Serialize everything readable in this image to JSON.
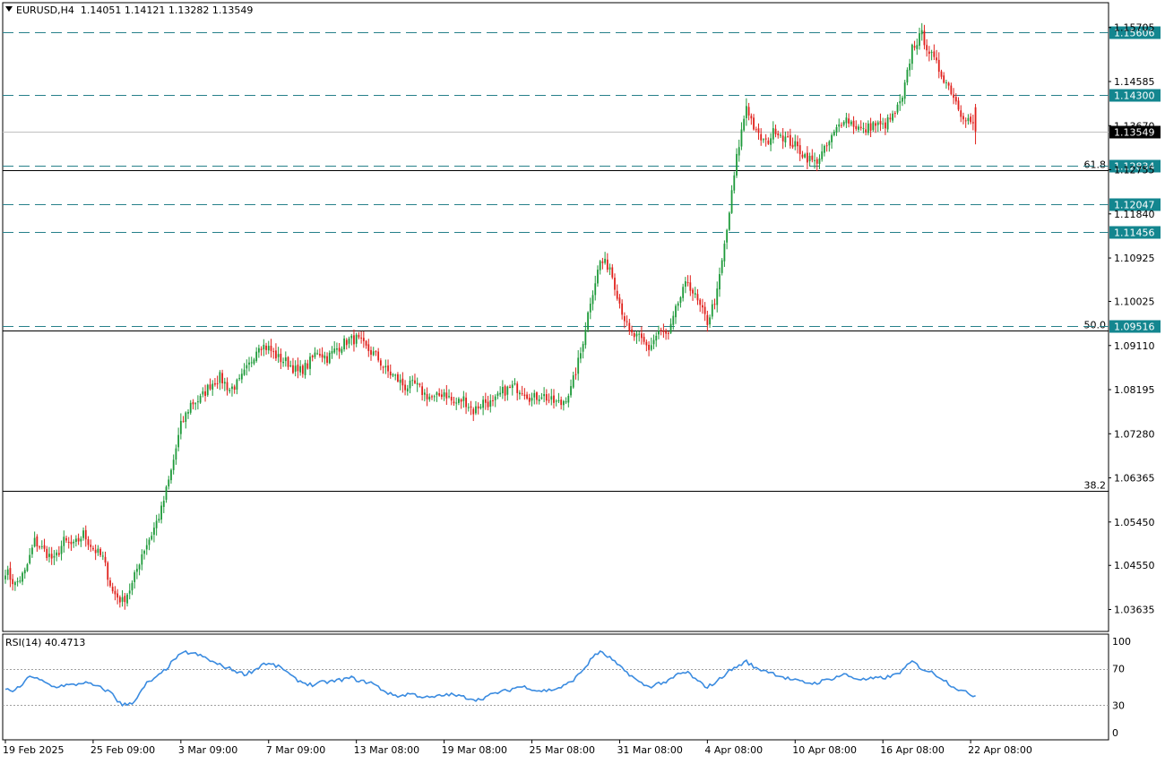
{
  "header": {
    "symbol": "EURUSD,H4",
    "open": "1.14051",
    "high": "1.14121",
    "low": "1.13282",
    "close": "1.13549"
  },
  "colors": {
    "bull": "#1e9a3a",
    "bear": "#e0201b",
    "level_line": "#26808a",
    "level_tag_bg": "#13868f",
    "current_tag_bg": "#000000",
    "rsi_line": "#3a8be0",
    "fib_line": "#000000"
  },
  "chart_data": [
    {
      "type": "candlestick",
      "title": "",
      "ylim": [
        1.0318,
        1.1622
      ],
      "y_ticks": [
        "1.15705",
        "1.14585",
        "1.13670",
        "1.12755",
        "1.11840",
        "1.10925",
        "1.10025",
        "1.09110",
        "1.08195",
        "1.07280",
        "1.06365",
        "1.05450",
        "1.04550",
        "1.03635"
      ],
      "x_ticks": [
        "19 Feb 2025",
        "25 Feb 09:00",
        "3 Mar 09:00",
        "7 Mar 09:00",
        "13 Mar 08:00",
        "19 Mar 08:00",
        "25 Mar 08:00",
        "31 Mar 08:00",
        "4 Apr 08:00",
        "10 Apr 08:00",
        "16 Apr 08:00",
        "22 Apr 08:00"
      ],
      "horizontal_levels": [
        {
          "label": "1.15606",
          "value": 1.15606,
          "style": "dashed"
        },
        {
          "label": "1.14300",
          "value": 1.143,
          "style": "dashed"
        },
        {
          "label": "1.12834",
          "value": 1.12834,
          "style": "dashed"
        },
        {
          "label": "1.12047",
          "value": 1.12047,
          "style": "dashed"
        },
        {
          "label": "1.11456",
          "value": 1.11456,
          "style": "dashed"
        },
        {
          "label": "1.09516",
          "value": 1.09516,
          "style": "dashed"
        }
      ],
      "current_price": {
        "label": "1.13549",
        "value": 1.13549
      },
      "fib_levels": [
        {
          "label": "61.8",
          "value": 1.1275
        },
        {
          "label": "50.0",
          "value": 1.0943
        },
        {
          "label": "38.2",
          "value": 1.061
        }
      ],
      "close_anchors": [
        [
          0,
          1.0445
        ],
        [
          4,
          1.0415
        ],
        [
          8,
          1.044
        ],
        [
          12,
          1.0505
        ],
        [
          16,
          1.0485
        ],
        [
          20,
          1.0465
        ],
        [
          24,
          1.0505
        ],
        [
          28,
          1.0495
        ],
        [
          32,
          1.052
        ],
        [
          36,
          1.049
        ],
        [
          40,
          1.047
        ],
        [
          44,
          1.04
        ],
        [
          48,
          1.038
        ],
        [
          52,
          1.0415
        ],
        [
          56,
          1.048
        ],
        [
          60,
          1.052
        ],
        [
          64,
          1.057
        ],
        [
          68,
          1.065
        ],
        [
          72,
          1.0745
        ],
        [
          76,
          1.079
        ],
        [
          80,
          1.08
        ],
        [
          84,
          1.083
        ],
        [
          88,
          1.0845
        ],
        [
          92,
          1.082
        ],
        [
          96,
          1.0835
        ],
        [
          100,
          1.087
        ],
        [
          104,
          1.0915
        ],
        [
          108,
          1.0905
        ],
        [
          112,
          1.0885
        ],
        [
          116,
          1.0875
        ],
        [
          120,
          1.0855
        ],
        [
          124,
          1.087
        ],
        [
          128,
          1.09
        ],
        [
          132,
          1.0885
        ],
        [
          136,
          1.0905
        ],
        [
          140,
          1.092
        ],
        [
          144,
          1.0925
        ],
        [
          148,
          1.0905
        ],
        [
          152,
          1.089
        ],
        [
          156,
          1.086
        ],
        [
          160,
          1.0845
        ],
        [
          164,
          1.0825
        ],
        [
          168,
          1.083
        ],
        [
          172,
          1.081
        ],
        [
          176,
          1.08
        ],
        [
          180,
          1.0815
        ],
        [
          184,
          1.079
        ],
        [
          188,
          1.08
        ],
        [
          192,
          1.0775
        ],
        [
          196,
          1.0795
        ],
        [
          200,
          1.079
        ],
        [
          204,
          1.0815
        ],
        [
          208,
          1.0825
        ],
        [
          212,
          1.082
        ],
        [
          216,
          1.08
        ],
        [
          220,
          1.081
        ],
        [
          224,
          1.0795
        ],
        [
          228,
          1.079
        ],
        [
          232,
          1.082
        ],
        [
          236,
          1.0895
        ],
        [
          240,
          1.1005
        ],
        [
          244,
          1.1085
        ],
        [
          248,
          1.1075
        ],
        [
          252,
          1.1
        ],
        [
          256,
          1.0935
        ],
        [
          260,
          1.0925
        ],
        [
          264,
          1.0905
        ],
        [
          268,
          1.094
        ],
        [
          272,
          1.093
        ],
        [
          276,
          1.1
        ],
        [
          280,
          1.1045
        ],
        [
          284,
          1.1
        ],
        [
          288,
          1.096
        ],
        [
          292,
          1.102
        ],
        [
          296,
          1.115
        ],
        [
          300,
          1.13
        ],
        [
          304,
          1.141
        ],
        [
          308,
          1.135
        ],
        [
          312,
          1.133
        ],
        [
          316,
          1.136
        ],
        [
          320,
          1.134
        ],
        [
          324,
          1.1325
        ],
        [
          328,
          1.1305
        ],
        [
          332,
          1.129
        ],
        [
          336,
          1.1315
        ],
        [
          340,
          1.135
        ],
        [
          344,
          1.1385
        ],
        [
          348,
          1.137
        ],
        [
          352,
          1.1355
        ],
        [
          356,
          1.137
        ],
        [
          360,
          1.1365
        ],
        [
          364,
          1.1385
        ],
        [
          368,
          1.142
        ],
        [
          372,
          1.153
        ],
        [
          376,
          1.1555
        ],
        [
          380,
          1.151
        ],
        [
          384,
          1.1475
        ],
        [
          388,
          1.144
        ],
        [
          392,
          1.1395
        ],
        [
          396,
          1.1375
        ],
        [
          398,
          1.1355
        ]
      ],
      "rsi_ylim": [
        0,
        100
      ],
      "rsi_ticks": [
        "100",
        "70",
        "30",
        "0"
      ],
      "rsi_levels": [
        70,
        30
      ],
      "rsi_header": "RSI(14) 40.4713",
      "rsi_anchors": [
        [
          0,
          47
        ],
        [
          4,
          46
        ],
        [
          8,
          55
        ],
        [
          10,
          63
        ],
        [
          12,
          60
        ],
        [
          16,
          55
        ],
        [
          20,
          50
        ],
        [
          24,
          52
        ],
        [
          28,
          52
        ],
        [
          32,
          55
        ],
        [
          36,
          52
        ],
        [
          40,
          48
        ],
        [
          44,
          43
        ],
        [
          46,
          35
        ],
        [
          48,
          30
        ],
        [
          52,
          33
        ],
        [
          54,
          38
        ],
        [
          58,
          54
        ],
        [
          62,
          60
        ],
        [
          66,
          70
        ],
        [
          70,
          82
        ],
        [
          74,
          88
        ],
        [
          78,
          86
        ],
        [
          82,
          82
        ],
        [
          86,
          76
        ],
        [
          90,
          72
        ],
        [
          94,
          68
        ],
        [
          98,
          64
        ],
        [
          102,
          68
        ],
        [
          106,
          76
        ],
        [
          110,
          74
        ],
        [
          114,
          70
        ],
        [
          118,
          60
        ],
        [
          122,
          55
        ],
        [
          126,
          52
        ],
        [
          130,
          55
        ],
        [
          134,
          56
        ],
        [
          138,
          58
        ],
        [
          142,
          60
        ],
        [
          146,
          56
        ],
        [
          150,
          55
        ],
        [
          154,
          48
        ],
        [
          158,
          42
        ],
        [
          162,
          40
        ],
        [
          166,
          43
        ],
        [
          170,
          40
        ],
        [
          174,
          38
        ],
        [
          178,
          40
        ],
        [
          182,
          42
        ],
        [
          186,
          40
        ],
        [
          190,
          38
        ],
        [
          194,
          36
        ],
        [
          198,
          40
        ],
        [
          202,
          44
        ],
        [
          206,
          46
        ],
        [
          210,
          50
        ],
        [
          214,
          50
        ],
        [
          218,
          46
        ],
        [
          222,
          46
        ],
        [
          226,
          48
        ],
        [
          230,
          52
        ],
        [
          234,
          60
        ],
        [
          238,
          72
        ],
        [
          242,
          86
        ],
        [
          244,
          88
        ],
        [
          248,
          82
        ],
        [
          252,
          72
        ],
        [
          256,
          64
        ],
        [
          260,
          55
        ],
        [
          264,
          50
        ],
        [
          268,
          54
        ],
        [
          272,
          56
        ],
        [
          276,
          64
        ],
        [
          280,
          66
        ],
        [
          284,
          56
        ],
        [
          288,
          50
        ],
        [
          292,
          56
        ],
        [
          296,
          66
        ],
        [
          300,
          72
        ],
        [
          304,
          78
        ],
        [
          308,
          70
        ],
        [
          312,
          68
        ],
        [
          316,
          64
        ],
        [
          320,
          60
        ],
        [
          324,
          57
        ],
        [
          328,
          55
        ],
        [
          332,
          54
        ],
        [
          336,
          57
        ],
        [
          340,
          60
        ],
        [
          344,
          64
        ],
        [
          348,
          60
        ],
        [
          352,
          58
        ],
        [
          356,
          59
        ],
        [
          360,
          60
        ],
        [
          364,
          62
        ],
        [
          368,
          68
        ],
        [
          372,
          78
        ],
        [
          376,
          70
        ],
        [
          380,
          66
        ],
        [
          384,
          60
        ],
        [
          388,
          52
        ],
        [
          392,
          46
        ],
        [
          396,
          42
        ],
        [
          398,
          40.47
        ]
      ]
    }
  ]
}
